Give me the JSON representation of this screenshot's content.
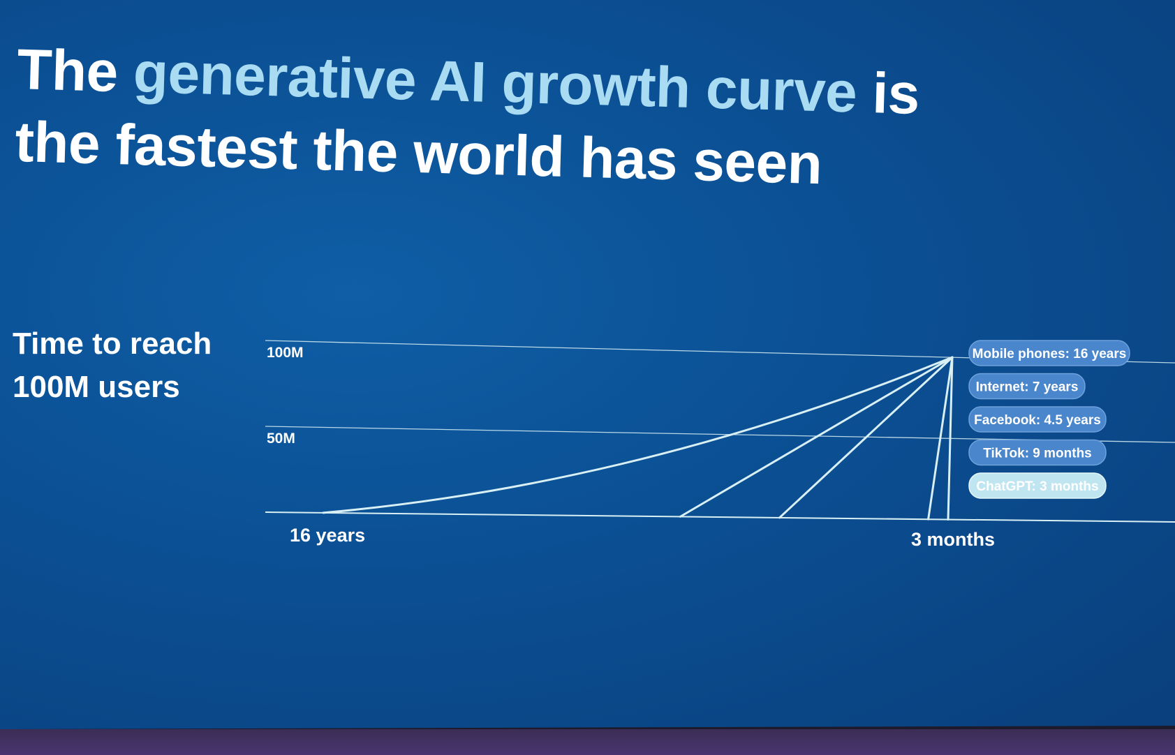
{
  "slide": {
    "title_prefix": "The ",
    "title_highlight": "generative AI growth curve",
    "title_suffix": " is the fastest the world has seen",
    "side_label": "Time to reach 100M users"
  },
  "colors": {
    "background": "#0b4f93",
    "line": "#d8f0f4",
    "pill": "#4a86cc",
    "pill_highlight": "#bfe6f0",
    "title_highlight": "#a9dcf3"
  },
  "chart_data": {
    "type": "line",
    "y_ticks": [
      {
        "value": 100000000,
        "label": "100M"
      },
      {
        "value": 50000000,
        "label": "50M"
      }
    ],
    "x_labels": {
      "start": "16 years",
      "end": "3 months"
    },
    "ylim": [
      0,
      100000000
    ],
    "grid": true,
    "series": [
      {
        "name": "Mobile phones: 16 years",
        "months": 192,
        "highlight": false
      },
      {
        "name": "Internet: 7 years",
        "months": 84,
        "highlight": false
      },
      {
        "name": "Facebook: 4.5 years",
        "months": 54,
        "highlight": false
      },
      {
        "name": "TikTok: 9 months",
        "months": 9,
        "highlight": false
      },
      {
        "name": "ChatGPT: 3 months",
        "months": 3,
        "highlight": true
      }
    ]
  }
}
